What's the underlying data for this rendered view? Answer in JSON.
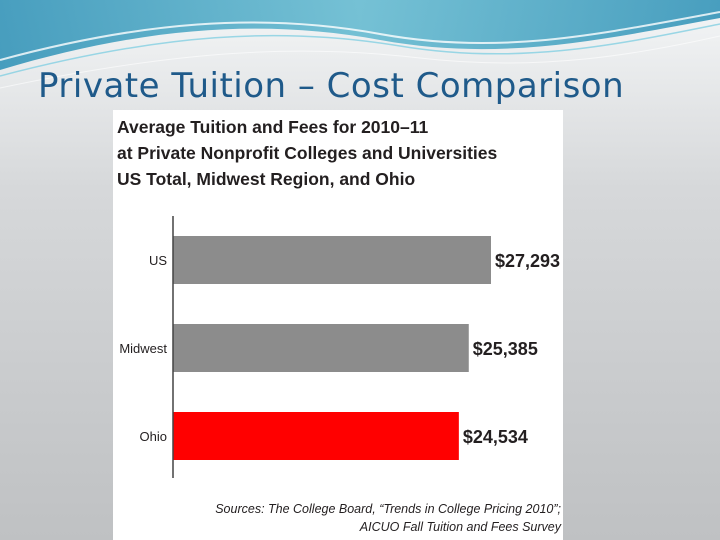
{
  "slide": {
    "title": "Private Tuition – Cost Comparison"
  },
  "chart_data": {
    "type": "bar",
    "orientation": "horizontal",
    "title_lines": [
      "Average Tuition and Fees for 2010–11",
      "at Private Nonprofit Colleges and Universities",
      "US Total, Midwest Region, and Ohio"
    ],
    "categories": [
      "US",
      "Midwest",
      "Ohio"
    ],
    "values": [
      27293,
      25385,
      24534
    ],
    "value_labels": [
      "$27,293",
      "$25,385",
      "$24,534"
    ],
    "bar_colors": [
      "#8c8c8c",
      "#8c8c8c",
      "#ff0000"
    ],
    "xlim": [
      0,
      27293
    ],
    "grid": false,
    "legend": "none",
    "source_lines": [
      "Sources: The College Board, “Trends in College Pricing 2010”;",
      "AICUO Fall Tuition and Fees Survey"
    ]
  },
  "colors": {
    "title": "#1f5a8a",
    "highlight": "#ff0000",
    "bar": "#8c8c8c"
  }
}
